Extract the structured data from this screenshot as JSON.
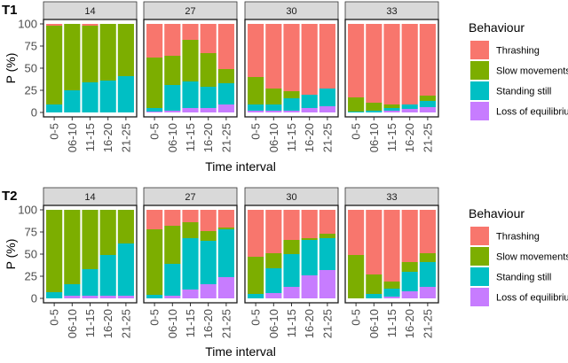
{
  "chart_data": [
    {
      "type": "bar",
      "stacked": true,
      "title": "T1",
      "xlabel": "Time interval",
      "ylabel": "P (%)",
      "ylim": [
        0,
        100
      ],
      "yticks": [
        "0",
        "25",
        "50",
        "75",
        "100"
      ],
      "categories": [
        "0-5",
        "06-10",
        "11-15",
        "16-20",
        "21-25"
      ],
      "legend": {
        "title": "Behaviour",
        "placement": "right",
        "entries": [
          "Thrashing",
          "Slow movements",
          "Standing still",
          "Loss of equilibrium"
        ]
      },
      "facets": [
        {
          "label": "14",
          "series": [
            {
              "name": "Loss of equilibrium",
              "values": [
                0,
                0,
                0,
                0,
                0
              ]
            },
            {
              "name": "Standing still",
              "values": [
                9,
                25,
                34,
                36,
                41
              ]
            },
            {
              "name": "Slow movements",
              "values": [
                89,
                75,
                64,
                64,
                59
              ]
            },
            {
              "name": "Thrashing",
              "values": [
                2,
                0,
                2,
                0,
                0
              ]
            }
          ]
        },
        {
          "label": "27",
          "series": [
            {
              "name": "Loss of equilibrium",
              "values": [
                1,
                2,
                5,
                5,
                9
              ]
            },
            {
              "name": "Standing still",
              "values": [
                4,
                29,
                30,
                24,
                24
              ]
            },
            {
              "name": "Slow movements",
              "values": [
                57,
                33,
                47,
                38,
                16
              ]
            },
            {
              "name": "Thrashing",
              "values": [
                38,
                36,
                18,
                33,
                51
              ]
            }
          ]
        },
        {
          "label": "30",
          "series": [
            {
              "name": "Loss of equilibrium",
              "values": [
                2,
                2,
                2,
                5,
                7
              ]
            },
            {
              "name": "Standing still",
              "values": [
                7,
                7,
                14,
                15,
                20
              ]
            },
            {
              "name": "Slow movements",
              "values": [
                31,
                18,
                8,
                0,
                0
              ]
            },
            {
              "name": "Thrashing",
              "values": [
                60,
                73,
                76,
                80,
                73
              ]
            }
          ]
        },
        {
          "label": "33",
          "series": [
            {
              "name": "Loss of equilibrium",
              "values": [
                0,
                0,
                2,
                4,
                6
              ]
            },
            {
              "name": "Standing still",
              "values": [
                1,
                2,
                3,
                5,
                7
              ]
            },
            {
              "name": "Slow movements",
              "values": [
                16,
                9,
                4,
                0,
                6
              ]
            },
            {
              "name": "Thrashing",
              "values": [
                83,
                89,
                91,
                91,
                81
              ]
            }
          ]
        }
      ]
    },
    {
      "type": "bar",
      "stacked": true,
      "title": "T2",
      "xlabel": "Time interval",
      "ylabel": "P (%)",
      "ylim": [
        0,
        100
      ],
      "yticks": [
        "0",
        "25",
        "50",
        "75",
        "100"
      ],
      "categories": [
        "0-5",
        "06-10",
        "11-15",
        "16-20",
        "21-25"
      ],
      "legend": {
        "title": "Behaviour",
        "placement": "right",
        "entries": [
          "Thrashing",
          "Slow movements",
          "Standing still",
          "Loss of equilibrium"
        ]
      },
      "facets": [
        {
          "label": "14",
          "series": [
            {
              "name": "Loss of equilibrium",
              "values": [
                0,
                3,
                3,
                3,
                3
              ]
            },
            {
              "name": "Standing still",
              "values": [
                7,
                13,
                30,
                46,
                59
              ]
            },
            {
              "name": "Slow movements",
              "values": [
                93,
                84,
                67,
                51,
                38
              ]
            },
            {
              "name": "Thrashing",
              "values": [
                0,
                0,
                0,
                0,
                0
              ]
            }
          ]
        },
        {
          "label": "27",
          "series": [
            {
              "name": "Loss of equilibrium",
              "values": [
                0,
                3,
                10,
                16,
                24
              ]
            },
            {
              "name": "Standing still",
              "values": [
                4,
                36,
                58,
                49,
                54
              ]
            },
            {
              "name": "Slow movements",
              "values": [
                74,
                43,
                18,
                11,
                2
              ]
            },
            {
              "name": "Thrashing",
              "values": [
                22,
                18,
                14,
                24,
                20
              ]
            }
          ]
        },
        {
          "label": "30",
          "series": [
            {
              "name": "Loss of equilibrium",
              "values": [
                0,
                6,
                13,
                26,
                32
              ]
            },
            {
              "name": "Standing still",
              "values": [
                5,
                28,
                37,
                40,
                36
              ]
            },
            {
              "name": "Slow movements",
              "values": [
                42,
                17,
                16,
                2,
                5
              ]
            },
            {
              "name": "Thrashing",
              "values": [
                53,
                49,
                34,
                32,
                27
              ]
            }
          ]
        },
        {
          "label": "33",
          "series": [
            {
              "name": "Loss of equilibrium",
              "values": [
                0,
                0,
                2,
                8,
                13
              ]
            },
            {
              "name": "Standing still",
              "values": [
                0,
                5,
                9,
                22,
                28
              ]
            },
            {
              "name": "Slow movements",
              "values": [
                49,
                22,
                8,
                11,
                10
              ]
            },
            {
              "name": "Thrashing",
              "values": [
                51,
                73,
                81,
                59,
                49
              ]
            }
          ]
        }
      ]
    }
  ],
  "colors": {
    "Thrashing": "#F8766D",
    "Slow movements": "#7CAE00",
    "Standing still": "#00BFC4",
    "Loss of equilibrium": "#C77CFF"
  }
}
